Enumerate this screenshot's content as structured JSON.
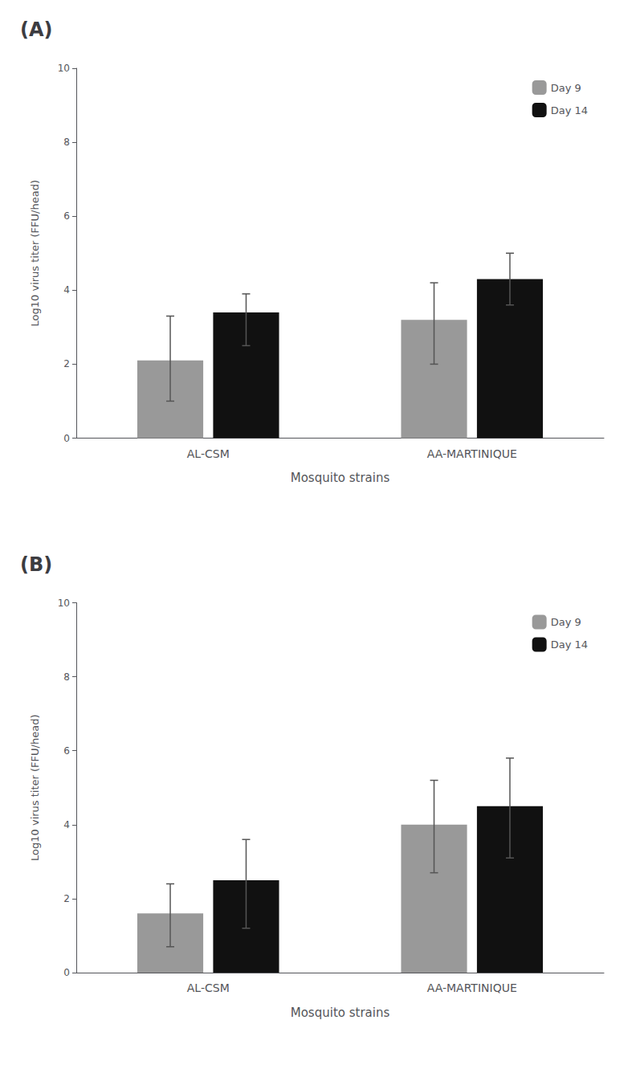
{
  "chart_data": [
    {
      "type": "bar",
      "title": "(A)",
      "categories": [
        "AL-CSM",
        "AA-MARTINIQUE"
      ],
      "series": [
        {
          "name": "Day 9",
          "color": "#999999",
          "values": [
            2.1,
            3.2
          ],
          "err_low": [
            1.1,
            1.2
          ],
          "err_high": [
            1.2,
            1.0
          ]
        },
        {
          "name": "Day 14",
          "color": "#111111",
          "values": [
            3.4,
            4.3
          ],
          "err_low": [
            0.9,
            0.7
          ],
          "err_high": [
            0.5,
            0.7
          ]
        }
      ],
      "xlabel": "Mosquito strains",
      "ylabel": "Log10 virus titer (FFU/head)",
      "ylim": [
        0,
        10
      ],
      "yticks": [
        0,
        2,
        4,
        6,
        8,
        10
      ],
      "grid": false,
      "legend": "upper right"
    },
    {
      "type": "bar",
      "title": "(B)",
      "categories": [
        "AL-CSM",
        "AA-MARTINIQUE"
      ],
      "series": [
        {
          "name": "Day 9",
          "color": "#999999",
          "values": [
            1.6,
            4.0
          ],
          "err_low": [
            0.9,
            1.3
          ],
          "err_high": [
            0.8,
            1.2
          ]
        },
        {
          "name": "Day 14",
          "color": "#111111",
          "values": [
            2.5,
            4.5
          ],
          "err_low": [
            1.3,
            1.4
          ],
          "err_high": [
            1.1,
            1.3
          ]
        }
      ],
      "xlabel": "Mosquito strains",
      "ylabel": "Log10 virus titer (FFU/head)",
      "ylim": [
        0,
        10
      ],
      "yticks": [
        0,
        2,
        4,
        6,
        8,
        10
      ],
      "grid": false,
      "legend": "upper right"
    }
  ]
}
